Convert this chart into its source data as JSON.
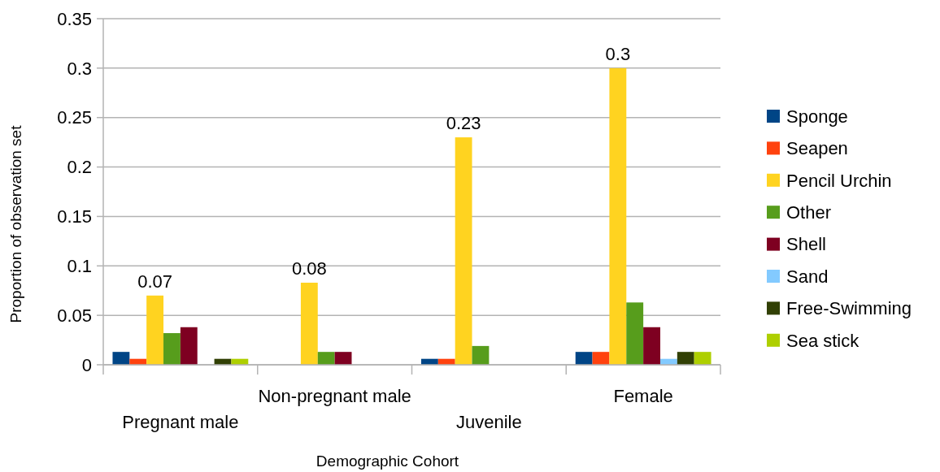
{
  "chart_data": {
    "type": "bar",
    "xlabel": "Demographic Cohort",
    "ylabel": "Proportion of observation set",
    "categories": [
      "Pregnant male",
      "Non-pregnant male",
      "Juvenile",
      "Female"
    ],
    "series": [
      {
        "name": "Sponge",
        "color": "#004586",
        "values": [
          0.013,
          0,
          0.006,
          0.013
        ]
      },
      {
        "name": "Seapen",
        "color": "#ff420e",
        "values": [
          0.006,
          0,
          0.006,
          0.013
        ]
      },
      {
        "name": "Pencil Urchin",
        "color": "#ffd320",
        "values": [
          0.07,
          0.083,
          0.23,
          0.3
        ],
        "value_labels": [
          "0.07",
          "0.08",
          "0.23",
          "0.3"
        ]
      },
      {
        "name": "Other",
        "color": "#579d1c",
        "values": [
          0.032,
          0.013,
          0.019,
          0.063
        ]
      },
      {
        "name": "Shell",
        "color": "#7e0021",
        "values": [
          0.038,
          0.013,
          0,
          0.038
        ]
      },
      {
        "name": "Sand",
        "color": "#83caff",
        "values": [
          0,
          0,
          0,
          0.006
        ]
      },
      {
        "name": "Free-Swimming",
        "color": "#314004",
        "values": [
          0.006,
          0,
          0,
          0.013
        ]
      },
      {
        "name": "Sea stick",
        "color": "#aecf00",
        "values": [
          0.006,
          0,
          0,
          0.013
        ]
      }
    ],
    "ylim": [
      0,
      0.35
    ],
    "yticks": [
      0,
      0.05,
      0.1,
      0.15,
      0.2,
      0.25,
      0.3,
      0.35
    ],
    "grid": "y",
    "legend": "right"
  }
}
